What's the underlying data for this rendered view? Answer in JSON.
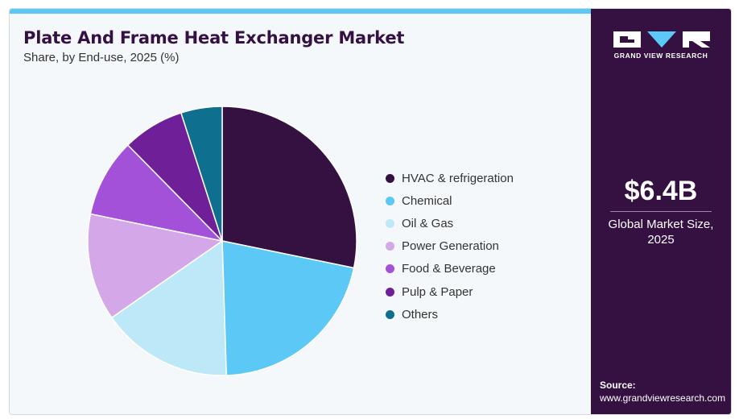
{
  "header": {
    "title": "Plate And Frame Heat Exchanger Market",
    "subtitle": "Share, by End-use, 2025 (%)"
  },
  "chart_data": {
    "type": "pie",
    "title": "Plate And Frame Heat Exchanger Market",
    "subtitle": "Share, by End-use, 2025 (%)",
    "start": "12 o'clock",
    "direction": "clockwise",
    "categories": [
      "HVAC & refrigeration",
      "Chemical",
      "Oil & Gas",
      "Power Generation",
      "Food & Beverage",
      "Pulp & Paper",
      "Others"
    ],
    "values": [
      28.5,
      21.5,
      16.0,
      13.0,
      9.5,
      7.5,
      5.0
    ],
    "colors": [
      "#351142",
      "#5bc8f5",
      "#bde8f8",
      "#d4a8e8",
      "#a351d8",
      "#6f1f97",
      "#0e6f8f"
    ]
  },
  "sidebar": {
    "logo_text": "GRAND VIEW RESEARCH",
    "market_value": "$6.4B",
    "market_label_line1": "Global Market Size,",
    "market_label_line2": "2025",
    "source_label": "Source:",
    "source_url": "www.grandviewresearch.com"
  }
}
